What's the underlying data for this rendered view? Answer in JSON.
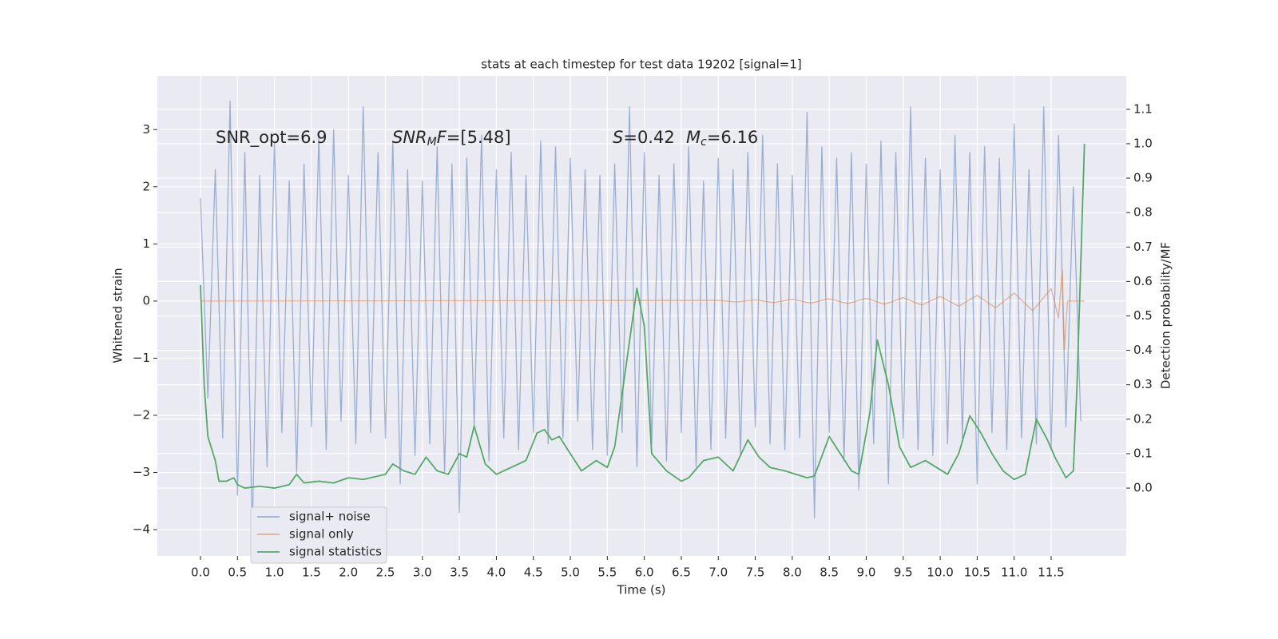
{
  "chart_data": {
    "type": "line",
    "title": "stats at each timestep for test data 19202 [signal=1]",
    "xlabel": "Time (s)",
    "ylabel": "Whitened strain",
    "y2label": "Detection probability/MF",
    "xlim": [
      -0.583,
      12.515
    ],
    "ylim": [
      -4.46,
      3.94
    ],
    "y2lim": [
      -0.197,
      1.197
    ],
    "grid": true,
    "xticks": [
      {
        "value": 0,
        "label": "0.0"
      },
      0.5,
      {
        "value": 1,
        "label": "1.0"
      },
      1.5,
      {
        "value": 2,
        "label": "2.0"
      },
      2.5,
      {
        "value": 3,
        "label": "3.0"
      },
      3.5,
      {
        "value": 4,
        "label": "4.0"
      },
      4.5,
      {
        "value": 5,
        "label": "5.0"
      },
      5.5,
      {
        "value": 6,
        "label": "6.0"
      },
      6.5,
      {
        "value": 7,
        "label": "7.0"
      },
      7.5,
      {
        "value": 8,
        "label": "8.0"
      },
      8.5,
      {
        "value": 9,
        "label": "9.0"
      },
      9.5,
      {
        "value": 10,
        "label": "10.0"
      },
      10.5,
      {
        "value": 11,
        "label": "11.0"
      },
      11.5
    ],
    "yticks": [
      {
        "value": -4,
        "label": "−4"
      },
      {
        "value": -3,
        "label": "−3"
      },
      {
        "value": -2,
        "label": "−2"
      },
      {
        "value": -1,
        "label": "−1"
      },
      0,
      1,
      2,
      3
    ],
    "y2ticks": [
      {
        "value": 0,
        "label": "0.0"
      },
      0.1,
      0.2,
      0.3,
      0.4,
      0.5,
      0.6,
      0.7,
      0.8,
      0.9,
      {
        "value": 1,
        "label": "1.0"
      },
      1.1
    ],
    "annotations": [
      [
        {
          "text": "SNR_opt=6.9"
        }
      ],
      [
        {
          "text": "SNR",
          "style": "italic"
        },
        {
          "text": "M",
          "style": "italic-sub"
        },
        {
          "text": "F",
          "style": "italic"
        },
        {
          "text": "=[5.48]"
        }
      ],
      [
        {
          "text": "S",
          "style": "italic"
        },
        {
          "text": "=0.42"
        }
      ],
      [
        {
          "text": "M",
          "style": "italic"
        },
        {
          "text": "c",
          "style": "italic-sub"
        },
        {
          "text": "=6.16"
        }
      ]
    ],
    "series": [
      {
        "name": "signal+ noise",
        "color": "#4c72b0",
        "alpha": 0.5,
        "x": [
          0,
          0.1,
          0.2,
          0.3,
          0.4,
          0.5,
          0.6,
          0.7,
          0.8,
          0.9,
          1,
          1.1,
          1.2,
          1.3,
          1.4,
          1.5,
          1.6,
          1.7,
          1.8,
          1.9,
          2,
          2.1,
          2.2,
          2.3,
          2.4,
          2.5,
          2.6,
          2.7,
          2.8,
          2.9,
          3,
          3.1,
          3.2,
          3.3,
          3.4,
          3.5,
          3.6,
          3.7,
          3.8,
          3.9,
          4,
          4.1,
          4.2,
          4.3,
          4.4,
          4.5,
          4.6,
          4.7,
          4.8,
          4.9,
          5,
          5.1,
          5.2,
          5.3,
          5.4,
          5.5,
          5.6,
          5.7,
          5.8,
          5.9,
          6,
          6.1,
          6.2,
          6.3,
          6.4,
          6.5,
          6.6,
          6.7,
          6.8,
          6.9,
          7,
          7.1,
          7.2,
          7.3,
          7.4,
          7.5,
          7.6,
          7.7,
          7.8,
          7.9,
          8,
          8.1,
          8.2,
          8.3,
          8.4,
          8.5,
          8.6,
          8.7,
          8.8,
          8.9,
          9,
          9.1,
          9.2,
          9.3,
          9.4,
          9.5,
          9.6,
          9.7,
          9.8,
          9.9,
          10,
          10.1,
          10.2,
          10.3,
          10.4,
          10.5,
          10.6,
          10.7,
          10.8,
          10.9,
          11,
          11.1,
          11.2,
          11.3,
          11.4,
          11.5,
          11.6,
          11.7,
          11.8,
          11.9
        ],
        "values": [
          1.8,
          -1.7,
          2.3,
          -2.4,
          3.5,
          -3.4,
          2.6,
          -4.1,
          2.2,
          -2.9,
          2.8,
          -2.3,
          2.1,
          -3.0,
          2.4,
          -2.2,
          2.9,
          -2.6,
          3.0,
          -2.1,
          2.2,
          -2.5,
          3.4,
          -2.3,
          2.6,
          -2.4,
          2.8,
          -3.2,
          2.3,
          -2.7,
          2.1,
          -2.5,
          2.7,
          -3.0,
          2.4,
          -3.7,
          2.5,
          -2.2,
          2.9,
          -2.8,
          2.3,
          -2.4,
          2.6,
          -2.6,
          2.2,
          -2.3,
          2.8,
          -2.5,
          2.7,
          -2.4,
          2.5,
          -2.1,
          2.3,
          -2.6,
          2.2,
          -2.7,
          2.4,
          -2.3,
          3.4,
          -2.9,
          2.6,
          -2.5,
          2.2,
          -2.8,
          2.4,
          -2.3,
          2.7,
          -2.9,
          2.1,
          -2.6,
          2.5,
          -2.4,
          2.3,
          -2.7,
          2.6,
          -2.2,
          2.9,
          -2.5,
          2.4,
          -2.6,
          2.2,
          -2.4,
          3.3,
          -3.8,
          2.7,
          -2.3,
          2.5,
          -2.8,
          2.6,
          -3.3,
          2.4,
          -2.5,
          2.8,
          -3.2,
          2.6,
          -2.4,
          3.4,
          -2.6,
          2.5,
          -2.7,
          2.3,
          -2.5,
          2.9,
          -2.4,
          2.6,
          -3.2,
          2.7,
          -2.3,
          2.5,
          -2.6,
          3.1,
          -2.4,
          2.3,
          -2.5,
          3.4,
          -2.6,
          2.9,
          -2.2,
          2.0,
          -2.1
        ]
      },
      {
        "name": "signal only",
        "color": "#dd8452",
        "alpha": 0.6,
        "x": [
          0,
          7,
          7.25,
          7.5,
          7.75,
          8,
          8.25,
          8.5,
          8.75,
          9,
          9.25,
          9.5,
          9.75,
          10,
          10.25,
          10.5,
          10.75,
          11,
          11.25,
          11.5,
          11.6,
          11.65,
          11.68,
          11.72,
          11.95
        ],
        "values": [
          0,
          0.01,
          -0.015,
          0.02,
          -0.025,
          0.03,
          -0.035,
          0.04,
          -0.045,
          0.05,
          -0.055,
          0.06,
          -0.07,
          0.08,
          -0.09,
          0.1,
          -0.12,
          0.14,
          -0.17,
          0.22,
          -0.3,
          0.55,
          -0.85,
          0,
          0
        ]
      },
      {
        "name": "signal statistics",
        "color": "#55a868",
        "alpha": 1,
        "axis": "y2",
        "x": [
          0,
          0.05,
          0.1,
          0.2,
          0.25,
          0.35,
          0.45,
          0.5,
          0.6,
          0.8,
          1,
          1.2,
          1.3,
          1.4,
          1.6,
          1.8,
          2,
          2.2,
          2.5,
          2.6,
          2.75,
          2.9,
          3.05,
          3.2,
          3.35,
          3.5,
          3.6,
          3.7,
          3.85,
          4,
          4.2,
          4.4,
          4.55,
          4.65,
          4.75,
          4.85,
          5,
          5.15,
          5.35,
          5.5,
          5.6,
          5.75,
          5.9,
          6,
          6.1,
          6.3,
          6.5,
          6.6,
          6.8,
          7,
          7.2,
          7.4,
          7.55,
          7.7,
          7.9,
          8.2,
          8.3,
          8.5,
          8.65,
          8.8,
          8.9,
          9.05,
          9.15,
          9.3,
          9.45,
          9.6,
          9.8,
          9.95,
          10.1,
          10.25,
          10.4,
          10.55,
          10.7,
          10.85,
          11,
          11.15,
          11.3,
          11.45,
          11.55,
          11.7,
          11.8,
          11.85,
          11.95
        ],
        "values": [
          0.59,
          0.3,
          0.15,
          0.08,
          0.02,
          0.02,
          0.03,
          0.01,
          0,
          0.005,
          0,
          0.01,
          0.04,
          0.015,
          0.02,
          0.015,
          0.03,
          0.025,
          0.04,
          0.07,
          0.05,
          0.04,
          0.09,
          0.05,
          0.04,
          0.1,
          0.09,
          0.18,
          0.07,
          0.04,
          0.06,
          0.08,
          0.16,
          0.17,
          0.14,
          0.15,
          0.1,
          0.05,
          0.08,
          0.06,
          0.12,
          0.35,
          0.58,
          0.47,
          0.1,
          0.05,
          0.02,
          0.03,
          0.08,
          0.09,
          0.05,
          0.14,
          0.09,
          0.06,
          0.05,
          0.03,
          0.035,
          0.15,
          0.1,
          0.05,
          0.04,
          0.22,
          0.43,
          0.3,
          0.12,
          0.06,
          0.08,
          0.06,
          0.04,
          0.1,
          0.21,
          0.16,
          0.1,
          0.05,
          0.025,
          0.04,
          0.2,
          0.14,
          0.09,
          0.03,
          0.05,
          0.3,
          1.0
        ]
      }
    ]
  }
}
